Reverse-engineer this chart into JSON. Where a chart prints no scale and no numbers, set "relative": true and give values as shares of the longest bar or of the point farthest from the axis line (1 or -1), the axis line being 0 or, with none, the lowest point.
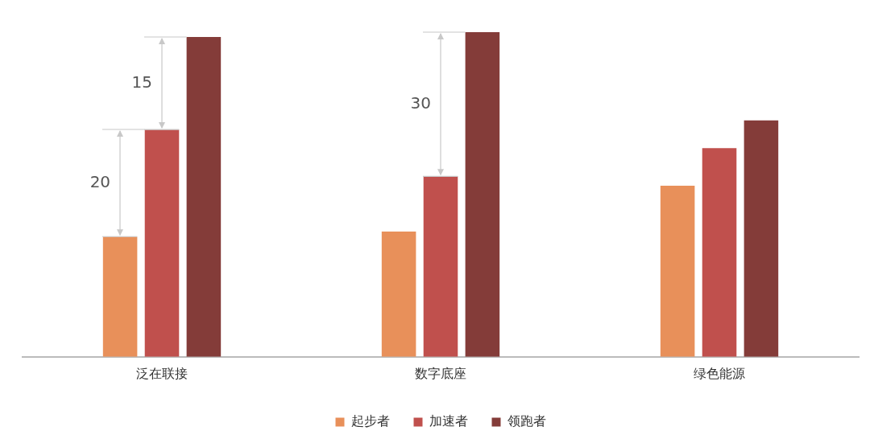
{
  "chart_data": {
    "type": "bar",
    "relative": true,
    "categories": [
      "泛在联接",
      "数字底座",
      "绿色能源"
    ],
    "series": [
      {
        "name": "起步者",
        "color": "#e8905a",
        "values": [
          0.37,
          0.386,
          0.527
        ]
      },
      {
        "name": "加速者",
        "color": "#c0504d",
        "values": [
          0.7,
          0.556,
          0.643
        ]
      },
      {
        "name": "领跑者",
        "color": "#843c39",
        "values": [
          0.985,
          1,
          0.728
        ]
      }
    ],
    "annotations": [
      "20",
      "15",
      "30"
    ],
    "legend": "bottom",
    "grid": false
  }
}
